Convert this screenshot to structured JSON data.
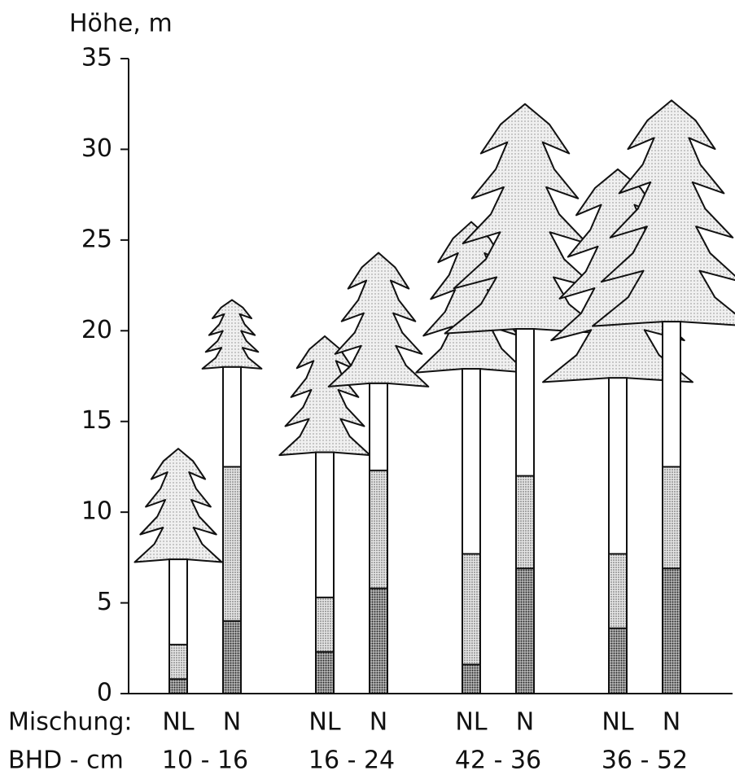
{
  "chart_data": {
    "type": "tree",
    "y_label": "Höhe, m",
    "ylim": [
      0,
      35
    ],
    "yticks": [
      0,
      5,
      10,
      15,
      20,
      25,
      30,
      35
    ],
    "row_labels": [
      "Mischung:",
      "BHD - cm"
    ],
    "groups": [
      {
        "bhd": "10 - 16",
        "trees": [
          {
            "mix": "NL",
            "dark": 0.8,
            "light": 2.7,
            "crown_base": 7.4,
            "height": 13.5
          },
          {
            "mix": "N",
            "dark": 4.0,
            "light": 12.5,
            "crown_base": 18.0,
            "height": 21.7
          }
        ]
      },
      {
        "bhd": "16 - 24",
        "trees": [
          {
            "mix": "NL",
            "dark": 2.3,
            "light": 5.3,
            "crown_base": 13.3,
            "height": 19.7
          },
          {
            "mix": "N",
            "dark": 5.8,
            "light": 12.3,
            "crown_base": 17.1,
            "height": 24.3
          }
        ]
      },
      {
        "bhd": "42 - 36",
        "trees": [
          {
            "mix": "NL",
            "dark": 1.6,
            "light": 7.7,
            "crown_base": 17.9,
            "height": 26.0
          },
          {
            "mix": "N",
            "dark": 6.9,
            "light": 12.0,
            "crown_base": 20.1,
            "height": 32.5
          }
        ]
      },
      {
        "bhd": "36 - 52",
        "trees": [
          {
            "mix": "NL",
            "dark": 3.6,
            "light": 7.7,
            "crown_base": 17.4,
            "height": 28.9
          },
          {
            "mix": "N",
            "dark": 6.9,
            "light": 12.5,
            "crown_base": 20.5,
            "height": 32.7
          }
        ]
      }
    ]
  }
}
